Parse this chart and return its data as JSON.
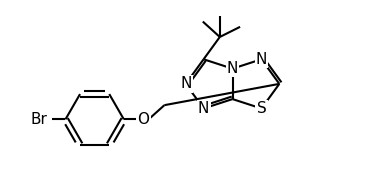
{
  "background_color": "#ffffff",
  "line_color": "#000000",
  "lw": 1.5,
  "fs": 10,
  "figsize": [
    3.88,
    1.86
  ],
  "dpi": 100,
  "xlim": [
    0,
    9.5
  ],
  "ylim": [
    0,
    4.5
  ]
}
